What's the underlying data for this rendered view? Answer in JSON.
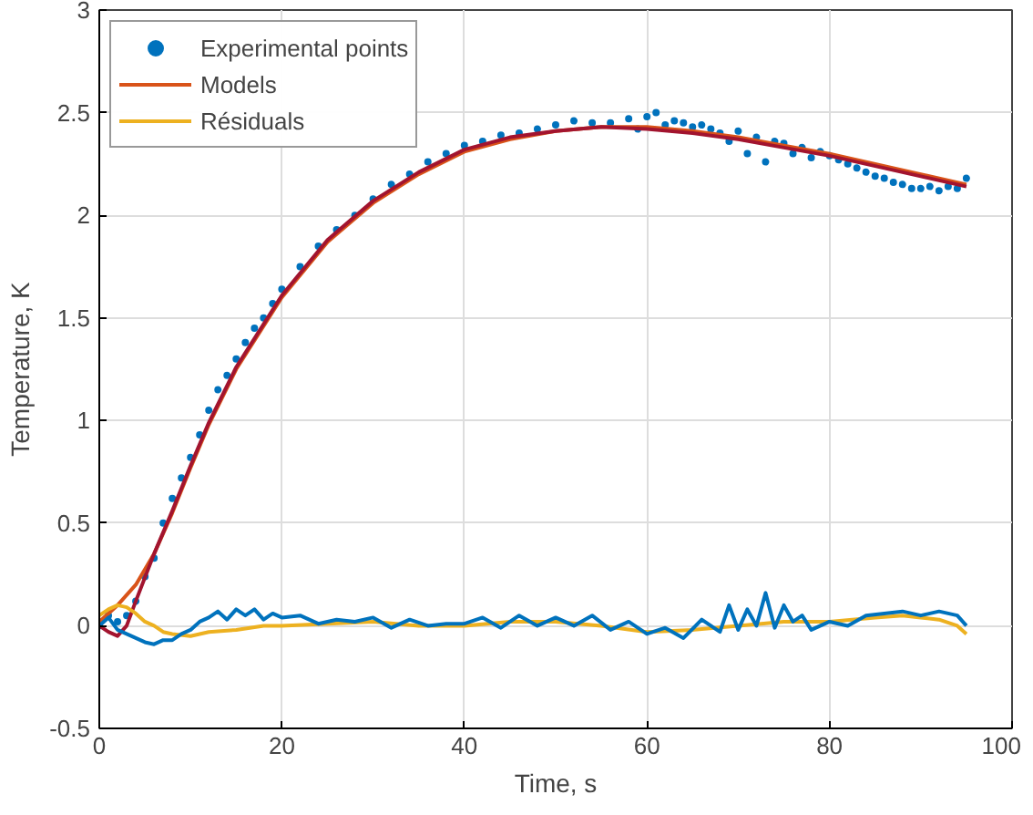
{
  "chart_data": {
    "type": "line",
    "xlabel": "Time, s",
    "ylabel": "Temperature, K",
    "xlim": [
      0,
      100
    ],
    "xticks": [
      0,
      20,
      40,
      60,
      80,
      100
    ],
    "ylim": [
      -0.5,
      3
    ],
    "yticks": [
      -0.5,
      0,
      0.5,
      1,
      1.5,
      2,
      2.5,
      3
    ],
    "grid": true,
    "legend": "top left",
    "series": [
      {
        "name": "Experimental points",
        "type": "scatter",
        "marker": "circle",
        "color": "#0072bd",
        "x": [
          0,
          1,
          2,
          3,
          4,
          5,
          6,
          7,
          8,
          9,
          10,
          11,
          12,
          13,
          14,
          15,
          16,
          17,
          18,
          19,
          20,
          22,
          24,
          26,
          28,
          30,
          32,
          34,
          36,
          38,
          40,
          42,
          44,
          46,
          48,
          50,
          52,
          54,
          56,
          58,
          59,
          60,
          61,
          62,
          63,
          64,
          65,
          66,
          67,
          68,
          69,
          70,
          71,
          72,
          73,
          74,
          75,
          76,
          77,
          78,
          79,
          80,
          81,
          82,
          83,
          84,
          85,
          86,
          87,
          88,
          89,
          90,
          91,
          92,
          93,
          94,
          95
        ],
        "values": [
          0.0,
          0.05,
          0.02,
          0.05,
          0.12,
          0.24,
          0.33,
          0.5,
          0.62,
          0.72,
          0.82,
          0.93,
          1.05,
          1.15,
          1.22,
          1.3,
          1.38,
          1.45,
          1.5,
          1.57,
          1.64,
          1.75,
          1.85,
          1.93,
          2.0,
          2.08,
          2.15,
          2.2,
          2.26,
          2.3,
          2.34,
          2.36,
          2.39,
          2.4,
          2.42,
          2.44,
          2.46,
          2.45,
          2.45,
          2.47,
          2.42,
          2.48,
          2.5,
          2.44,
          2.46,
          2.45,
          2.43,
          2.44,
          2.42,
          2.4,
          2.36,
          2.41,
          2.3,
          2.38,
          2.26,
          2.36,
          2.35,
          2.3,
          2.33,
          2.28,
          2.31,
          2.29,
          2.27,
          2.25,
          2.23,
          2.21,
          2.19,
          2.18,
          2.16,
          2.15,
          2.13,
          2.13,
          2.14,
          2.12,
          2.14,
          2.13,
          2.18
        ]
      },
      {
        "name": "Models",
        "color": "#d95319",
        "x": [
          0,
          2,
          4,
          6,
          8,
          10,
          12,
          15,
          20,
          25,
          30,
          35,
          40,
          45,
          50,
          55,
          60,
          65,
          70,
          75,
          80,
          85,
          90,
          95
        ],
        "values": [
          0.02,
          0.1,
          0.2,
          0.35,
          0.55,
          0.77,
          0.98,
          1.25,
          1.6,
          1.87,
          2.06,
          2.2,
          2.31,
          2.37,
          2.41,
          2.43,
          2.43,
          2.41,
          2.38,
          2.34,
          2.3,
          2.25,
          2.2,
          2.15
        ]
      },
      {
        "color": "#a2142f",
        "x": [
          0,
          1,
          2,
          3,
          4,
          6,
          8,
          10,
          12,
          15,
          20,
          25,
          30,
          35,
          40,
          45,
          50,
          55,
          60,
          65,
          70,
          75,
          80,
          85,
          90,
          95
        ],
        "values": [
          0.0,
          -0.03,
          -0.05,
          0.0,
          0.12,
          0.35,
          0.56,
          0.78,
          0.99,
          1.26,
          1.61,
          1.88,
          2.07,
          2.21,
          2.32,
          2.38,
          2.41,
          2.43,
          2.42,
          2.4,
          2.37,
          2.33,
          2.29,
          2.24,
          2.19,
          2.14
        ]
      },
      {
        "name": "Résiduals",
        "color": "#edb120",
        "x": [
          0,
          1,
          2,
          3,
          4,
          5,
          6,
          7,
          8,
          10,
          12,
          15,
          18,
          20,
          25,
          30,
          35,
          40,
          45,
          50,
          55,
          60,
          65,
          70,
          75,
          80,
          85,
          88,
          90,
          92,
          94,
          95
        ],
        "values": [
          0.05,
          0.08,
          0.1,
          0.09,
          0.06,
          0.02,
          0.0,
          -0.03,
          -0.04,
          -0.05,
          -0.03,
          -0.02,
          0.0,
          0.0,
          0.01,
          0.02,
          0.0,
          0.0,
          0.02,
          0.02,
          0.0,
          -0.03,
          -0.02,
          0.0,
          0.02,
          0.02,
          0.04,
          0.05,
          0.04,
          0.03,
          0.0,
          -0.04
        ]
      },
      {
        "color": "#0072bd",
        "x": [
          0,
          1,
          2,
          3,
          4,
          5,
          6,
          7,
          8,
          9,
          10,
          11,
          12,
          13,
          14,
          15,
          16,
          17,
          18,
          19,
          20,
          22,
          24,
          26,
          28,
          30,
          32,
          34,
          36,
          38,
          40,
          42,
          44,
          46,
          48,
          50,
          52,
          54,
          56,
          58,
          60,
          62,
          64,
          66,
          68,
          69,
          70,
          71,
          72,
          73,
          74,
          75,
          76,
          77,
          78,
          80,
          82,
          84,
          86,
          88,
          90,
          92,
          94,
          95
        ],
        "values": [
          0.0,
          0.04,
          -0.02,
          -0.04,
          -0.06,
          -0.08,
          -0.09,
          -0.07,
          -0.07,
          -0.04,
          -0.02,
          0.02,
          0.04,
          0.07,
          0.03,
          0.08,
          0.05,
          0.08,
          0.03,
          0.06,
          0.04,
          0.05,
          0.01,
          0.03,
          0.02,
          0.04,
          -0.01,
          0.03,
          0.0,
          0.01,
          0.01,
          0.04,
          -0.01,
          0.05,
          0.0,
          0.04,
          0.0,
          0.05,
          -0.02,
          0.02,
          -0.04,
          -0.01,
          -0.06,
          0.03,
          -0.03,
          0.1,
          -0.02,
          0.08,
          0.0,
          0.16,
          -0.01,
          0.1,
          0.02,
          0.05,
          -0.02,
          0.02,
          0.0,
          0.05,
          0.06,
          0.07,
          0.05,
          0.07,
          0.05,
          0.0
        ]
      }
    ]
  }
}
